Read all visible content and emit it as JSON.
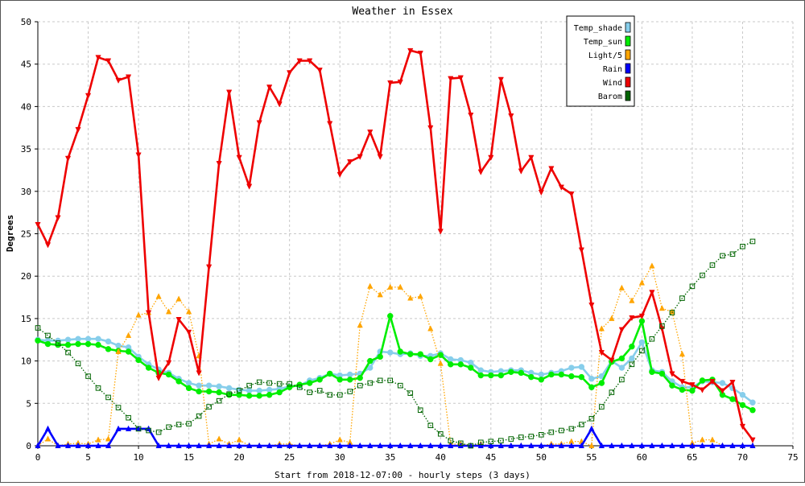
{
  "chart_data": {
    "type": "line",
    "title": "Weather in Essex",
    "xlabel": "Start from 2018-12-07:00 - hourly steps (3 days)",
    "ylabel": "Degrees",
    "xlim": [
      0,
      75
    ],
    "ylim": [
      0,
      50
    ],
    "x_ticks": [
      0,
      5,
      10,
      15,
      20,
      25,
      30,
      35,
      40,
      45,
      50,
      55,
      60,
      65,
      70,
      75
    ],
    "y_ticks": [
      0,
      5,
      10,
      15,
      20,
      25,
      30,
      35,
      40,
      45,
      50
    ],
    "grid": true,
    "legend_position": "top-right",
    "series": [
      {
        "name": "Temp_shade",
        "color": "#87ceeb",
        "marker": "circle",
        "line": "solid",
        "values": [
          12.5,
          12.4,
          12.4,
          12.5,
          12.6,
          12.6,
          12.6,
          12.3,
          11.8,
          11.6,
          10.5,
          9.6,
          9.0,
          8.6,
          7.9,
          7.4,
          7.1,
          7.1,
          7.0,
          6.8,
          6.6,
          6.5,
          6.5,
          6.6,
          6.7,
          7.0,
          7.1,
          7.7,
          8.0,
          8.5,
          8.3,
          8.4,
          8.5,
          9.2,
          11.1,
          11.0,
          10.8,
          10.9,
          10.6,
          10.6,
          10.9,
          10.2,
          10.1,
          9.8,
          8.9,
          8.7,
          8.8,
          8.9,
          8.9,
          8.6,
          8.4,
          8.6,
          8.8,
          9.2,
          9.3,
          7.9,
          8.2,
          10.0,
          9.2,
          10.3,
          12.2,
          8.9,
          8.7,
          7.6,
          6.9,
          6.9,
          7.6,
          7.5,
          7.4,
          6.8,
          6.0,
          5.1
        ]
      },
      {
        "name": "Temp_sun",
        "color": "#00ee00",
        "marker": "circle",
        "line": "solid",
        "values": [
          12.4,
          12.0,
          11.9,
          11.9,
          12.0,
          12.0,
          11.9,
          11.4,
          11.2,
          11.1,
          10.1,
          9.2,
          8.6,
          8.4,
          7.6,
          6.8,
          6.4,
          6.4,
          6.3,
          6.0,
          6.0,
          5.9,
          5.9,
          6.0,
          6.3,
          6.9,
          7.2,
          7.4,
          7.8,
          8.5,
          7.8,
          7.8,
          8.0,
          10.0,
          10.5,
          15.3,
          11.1,
          10.8,
          10.8,
          10.2,
          10.7,
          9.6,
          9.6,
          9.2,
          8.3,
          8.3,
          8.3,
          8.7,
          8.6,
          8.1,
          7.8,
          8.4,
          8.4,
          8.2,
          8.1,
          6.9,
          7.4,
          9.9,
          10.3,
          11.7,
          14.7,
          8.7,
          8.5,
          7.1,
          6.6,
          6.5,
          7.7,
          7.8,
          6.0,
          5.5,
          4.8,
          4.2
        ]
      },
      {
        "name": "Light/5",
        "color": "#ffa500",
        "marker": "triangle-up",
        "line": "dotted",
        "values": [
          0,
          0.8,
          0,
          0.2,
          0.3,
          0.2,
          0.7,
          0.8,
          11.1,
          13.0,
          15.4,
          15.7,
          17.6,
          15.8,
          17.3,
          15.8,
          10.6,
          0.2,
          0.8,
          0.2,
          0.7,
          0,
          0,
          0,
          0.2,
          0.2,
          0,
          0,
          0,
          0.2,
          0.7,
          0.4,
          14.2,
          18.8,
          17.8,
          18.7,
          18.7,
          17.4,
          17.6,
          13.8,
          9.7,
          0.2,
          0.2,
          0,
          0.2,
          0,
          0,
          0,
          0,
          0,
          0,
          0.2,
          0.2,
          0.5,
          0.5,
          0,
          13.8,
          15.0,
          18.6,
          17.1,
          19.2,
          21.2,
          16.2,
          15.8,
          10.8,
          0.3,
          0.7,
          0.7,
          0,
          0,
          0,
          0
        ]
      },
      {
        "name": "Rain",
        "color": "#0000ff",
        "marker": "triangle-up",
        "line": "solid",
        "values": [
          0,
          2.0,
          0,
          0,
          0,
          0,
          0,
          0,
          2.0,
          2.0,
          2.0,
          2.0,
          0,
          0,
          0,
          0,
          0,
          0,
          0,
          0,
          0,
          0,
          0,
          0,
          0,
          0,
          0,
          0,
          0,
          0,
          0,
          0,
          0,
          0,
          0,
          0,
          0,
          0,
          0,
          0,
          0,
          0,
          0,
          0,
          0,
          0,
          0,
          0,
          0,
          0,
          0,
          0,
          0,
          0,
          0,
          2.0,
          0,
          0,
          0,
          0,
          0,
          0,
          0,
          0,
          0,
          0,
          0,
          0,
          0,
          0,
          0,
          0
        ]
      },
      {
        "name": "Wind",
        "color": "#ee0000",
        "marker": "triangle-down",
        "line": "solid",
        "values": [
          26.1,
          23.7,
          26.9,
          33.9,
          37.3,
          41.3,
          45.8,
          45.4,
          43.1,
          43.5,
          34.3,
          15.7,
          8.0,
          9.8,
          14.9,
          13.4,
          8.6,
          21.1,
          33.3,
          41.7,
          34.0,
          30.6,
          38.1,
          42.3,
          40.3,
          44.0,
          45.4,
          45.4,
          44.3,
          38.0,
          32.0,
          33.5,
          34.1,
          37.0,
          34.1,
          42.8,
          42.9,
          46.6,
          46.3,
          37.5,
          25.3,
          43.3,
          43.4,
          39.0,
          32.3,
          34.0,
          43.2,
          38.9,
          32.4,
          34.0,
          29.9,
          32.7,
          30.5,
          29.7,
          23.1,
          16.6,
          11.0,
          10.1,
          13.7,
          15.1,
          15.3,
          18.1,
          13.8,
          8.5,
          7.6,
          7.2,
          6.6,
          7.6,
          6.5,
          7.5,
          2.3,
          0.7
        ]
      },
      {
        "name": "Barom",
        "color": "#006400",
        "marker": "square",
        "line": "dotted",
        "values": [
          13.9,
          13.0,
          12.1,
          11.0,
          9.7,
          8.2,
          6.8,
          5.7,
          4.5,
          3.3,
          2.0,
          1.8,
          1.6,
          2.2,
          2.5,
          2.6,
          3.5,
          4.6,
          5.3,
          6.1,
          6.5,
          7.1,
          7.5,
          7.4,
          7.3,
          7.3,
          6.9,
          6.3,
          6.5,
          6.0,
          6.0,
          6.4,
          7.1,
          7.4,
          7.7,
          7.7,
          7.1,
          6.2,
          4.2,
          2.4,
          1.4,
          0.6,
          0.3,
          0,
          0.4,
          0.5,
          0.6,
          0.8,
          1.0,
          1.1,
          1.3,
          1.6,
          1.8,
          2.0,
          2.5,
          3.2,
          4.6,
          6.3,
          7.8,
          9.6,
          11.2,
          12.6,
          14.1,
          15.7,
          17.4,
          18.8,
          20.1,
          21.3,
          22.4,
          22.6,
          23.5,
          24.1
        ]
      }
    ]
  }
}
